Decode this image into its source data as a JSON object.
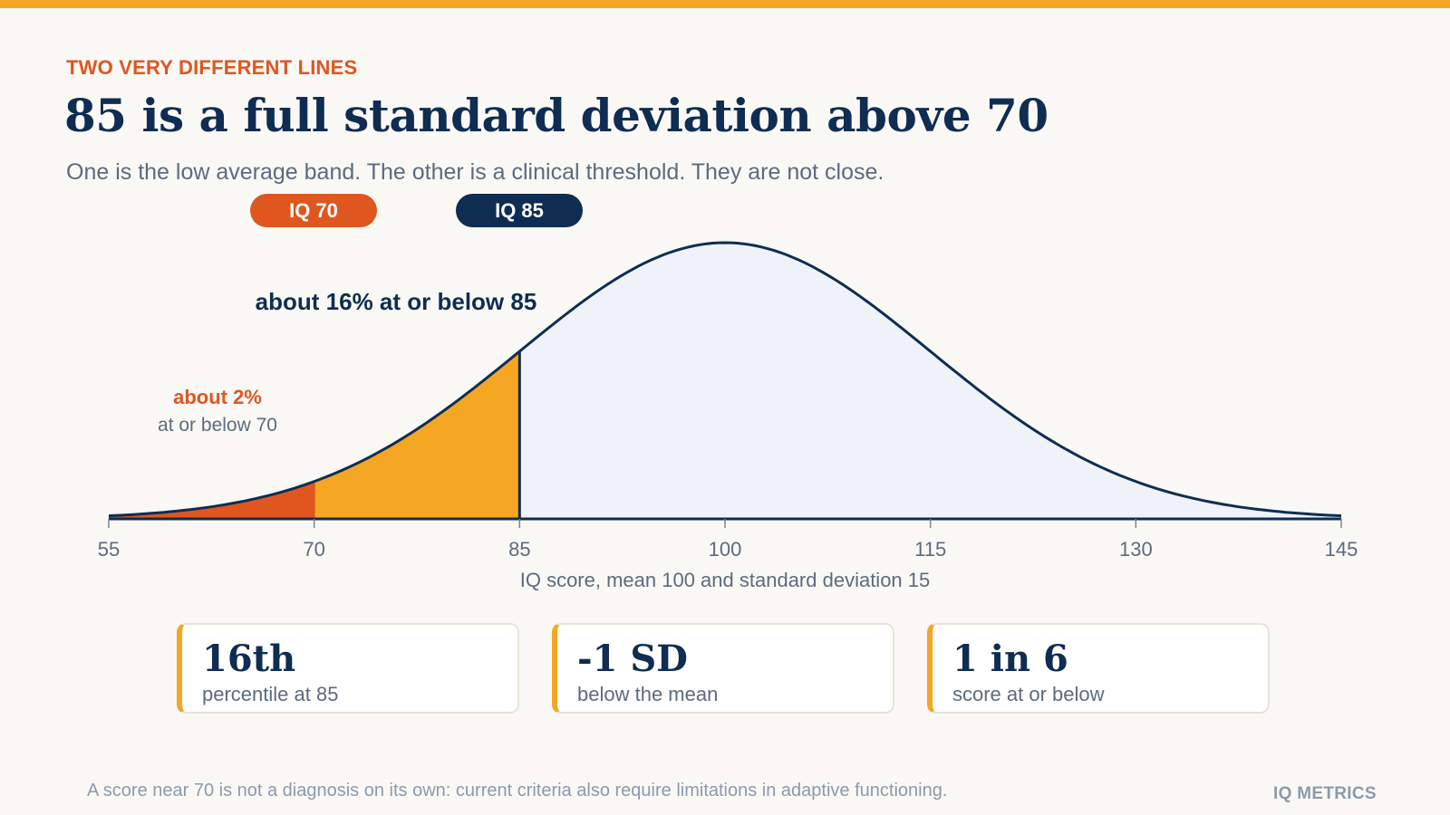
{
  "header": {
    "eyebrow": "TWO VERY DIFFERENT LINES",
    "title": "85 is a full standard deviation above 70",
    "subtitle": "One is the low average band. The other is a clinical threshold. They are not close."
  },
  "pills": {
    "iq70": "IQ 70",
    "iq85": "IQ 85"
  },
  "colors": {
    "accent_orange": "#e0561f",
    "accent_amber": "#f5a623",
    "navy": "#0f2d52",
    "curve_fill": "#eff3f9",
    "background": "#faf8f5"
  },
  "chart_data": {
    "type": "area",
    "distribution": "normal",
    "mean": 100,
    "sd": 15,
    "xlim": [
      55,
      145
    ],
    "ticks": [
      55,
      70,
      85,
      100,
      115,
      130,
      145
    ],
    "xlabel": "IQ score, mean 100 and standard deviation 15",
    "shaded_regions": [
      {
        "from": 55,
        "to": 70,
        "color": "#e0561f"
      },
      {
        "from": 70,
        "to": 85,
        "color": "#f5a623"
      }
    ],
    "markers": [
      70,
      85
    ],
    "annotations": {
      "at_85": "about 16% at or below 85",
      "at_70_value": "about 2%",
      "at_70_text": "at or below 70"
    }
  },
  "stats": [
    {
      "value": "16th",
      "label": "percentile at 85"
    },
    {
      "value": "-1 SD",
      "label": "below the mean"
    },
    {
      "value": "1 in 6",
      "label": "score at or below"
    }
  ],
  "footer": {
    "note": "A score near 70 is not a diagnosis on its own: current criteria also require limitations in adaptive functioning.",
    "brand": "IQ METRICS"
  }
}
